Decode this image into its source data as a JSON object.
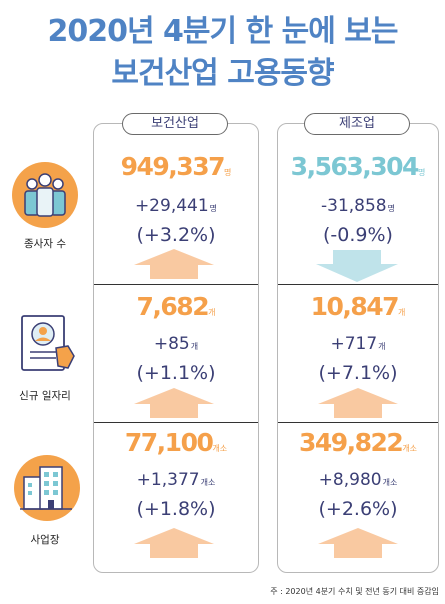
{
  "title": {
    "line1": "2020년 4분기 한 눈에 보는",
    "line2": "보건산업 고용동향"
  },
  "panels": {
    "left": {
      "label": "보건산업"
    },
    "right": {
      "label": "제조업"
    }
  },
  "rows": [
    {
      "label": "종사자 수",
      "icon": "workers-group-icon",
      "left": {
        "value": "949,337",
        "value_unit": "명",
        "change": "+29,441",
        "change_unit": "명",
        "pct": "(+3.2%)",
        "direction": "up"
      },
      "right": {
        "value": "3,563,304",
        "value_unit": "명",
        "change": "-31,858",
        "change_unit": "명",
        "pct": "(-0.9%)",
        "direction": "down"
      }
    },
    {
      "label": "신규 일자리",
      "icon": "job-document-icon",
      "left": {
        "value": "7,682",
        "value_unit": "개",
        "change": "+85",
        "change_unit": "개",
        "pct": "(+1.1%)",
        "direction": "up"
      },
      "right": {
        "value": "10,847",
        "value_unit": "개",
        "change": "+717",
        "change_unit": "개",
        "pct": "(+7.1%)",
        "direction": "up"
      }
    },
    {
      "label": "사업장",
      "icon": "building-icon",
      "left": {
        "value": "77,100",
        "value_unit": "개소",
        "change": "+1,377",
        "change_unit": "개소",
        "pct": "(+1.8%)",
        "direction": "up"
      },
      "right": {
        "value": "349,822",
        "value_unit": "개소",
        "change": "+8,980",
        "change_unit": "개소",
        "pct": "(+2.6%)",
        "direction": "up"
      }
    }
  ],
  "footnote": "주 : 2020년 4분기 수치 및 전년 동기 대비 증감임",
  "colors": {
    "title": "#4f83c4",
    "orange": "#f5a04a",
    "teal": "#7cc7d3",
    "arrow_up": "#f9c9a1",
    "arrow_down": "#bfe3ea",
    "icon_bg": "#f4a24a"
  }
}
